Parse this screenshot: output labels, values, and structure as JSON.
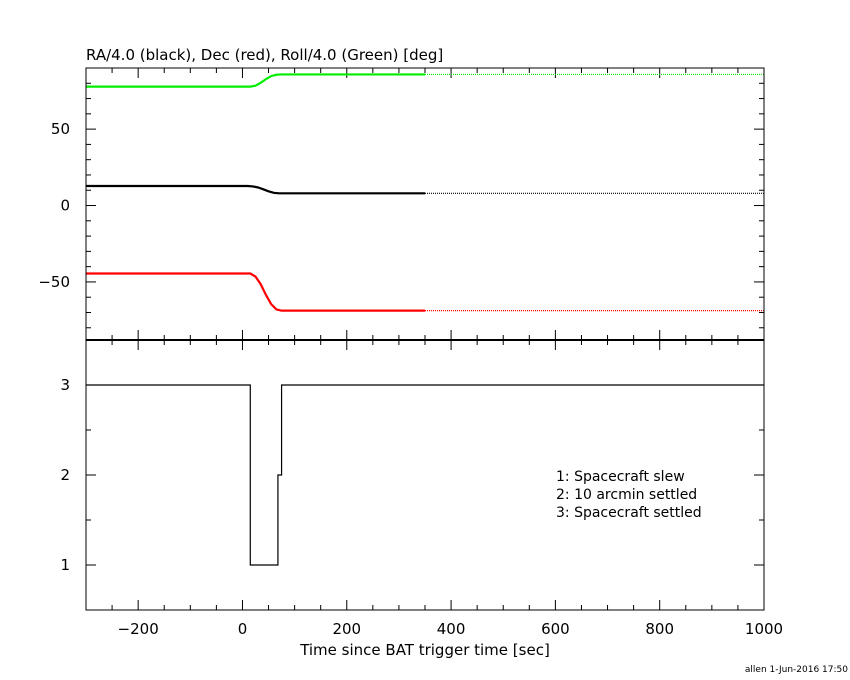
{
  "colors": {
    "ra": "#000000",
    "dec": "#ff0000",
    "roll": "#00ee00",
    "axis": "#000000",
    "background": "#ffffff"
  },
  "chart_data": [
    {
      "type": "line",
      "panel": "top",
      "title": "RA/4.0 (black), Dec (red), Roll/4.0 (Green) [deg]",
      "xlim": [
        -300,
        1000
      ],
      "ylim": [
        -88,
        90
      ],
      "yticks": [
        -50,
        0,
        50
      ],
      "ytick_labels": [
        "−50",
        "0",
        "50"
      ],
      "solid_until_x": 350,
      "series": [
        {
          "key": "ra",
          "name": "RA/4.0",
          "x": [
            -300,
            10,
            20,
            30,
            40,
            50,
            60,
            70,
            1000
          ],
          "y": [
            12.8,
            12.8,
            12.5,
            11.8,
            10.6,
            9.3,
            8.3,
            8.0,
            8.0
          ]
        },
        {
          "key": "dec",
          "name": "Dec",
          "x": [
            -300,
            15,
            25,
            35,
            45,
            55,
            65,
            75,
            1000
          ],
          "y": [
            -44.5,
            -44.5,
            -46.5,
            -51.5,
            -58.5,
            -64.5,
            -68.0,
            -68.8,
            -68.8
          ]
        },
        {
          "key": "roll",
          "name": "Roll/4.0",
          "x": [
            -300,
            15,
            25,
            35,
            45,
            55,
            65,
            75,
            1000
          ],
          "y": [
            77.8,
            77.8,
            78.4,
            80.3,
            82.7,
            84.7,
            85.6,
            85.8,
            85.8
          ]
        }
      ]
    },
    {
      "type": "line",
      "panel": "bottom",
      "xlabel": "Time since BAT trigger time [sec]",
      "xlim": [
        -300,
        1000
      ],
      "ylim": [
        0.5,
        3.5
      ],
      "xticks": [
        -200,
        0,
        200,
        400,
        600,
        800,
        1000
      ],
      "xtick_labels": [
        "−200",
        "0",
        "200",
        "400",
        "600",
        "800",
        "1000"
      ],
      "yticks": [
        1,
        2,
        3
      ],
      "ytick_labels": [
        "1",
        "2",
        "3"
      ],
      "series": [
        {
          "key": "state",
          "x": [
            -300,
            15,
            15,
            68,
            68,
            75,
            75,
            1000
          ],
          "y": [
            3,
            3,
            1,
            1,
            2,
            2,
            3,
            3
          ]
        }
      ],
      "annotations": [
        "1: Spacecraft slew",
        "2: 10 arcmin settled",
        "3: Spacecraft settled"
      ]
    }
  ],
  "footer": {
    "stamp": "allen  1-Jun-2016 17:50"
  }
}
